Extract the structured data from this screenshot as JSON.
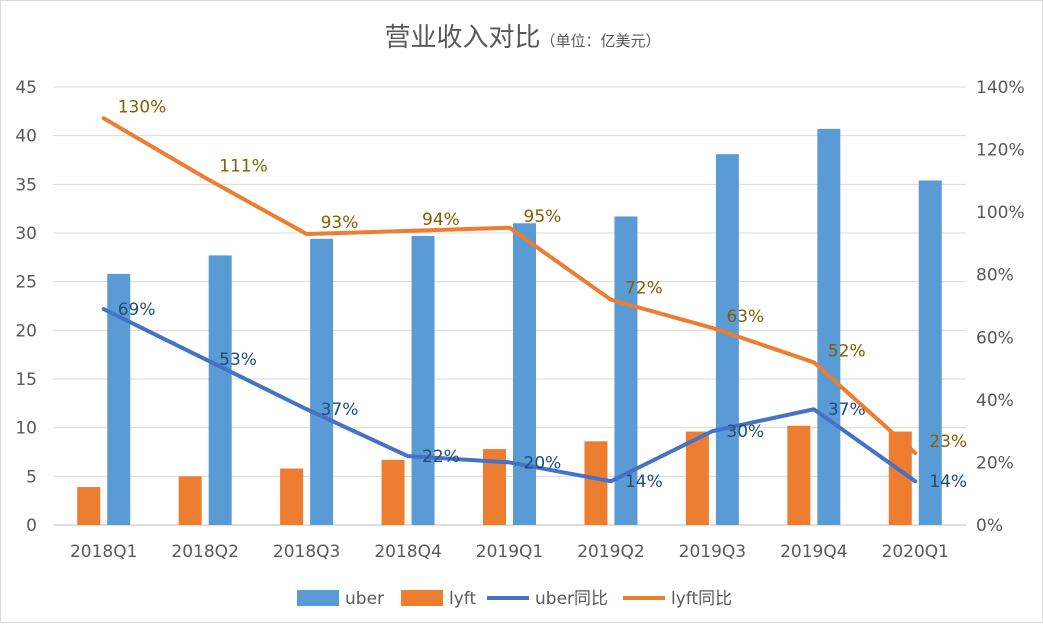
{
  "title": "营业收入对比",
  "unit": "（单位：亿美元）",
  "colors": {
    "uber": "#5B9BD5",
    "lyft": "#ED7D31",
    "uber_line": "#4472C4",
    "lyft_line": "#ED7D31",
    "uber_label": "#1F4E79",
    "lyft_label": "#7F6000"
  },
  "chart_data": {
    "type": "bar",
    "title": "营业收入对比",
    "subtitle": "（单位：亿美元）",
    "categories": [
      "2018Q1",
      "2018Q2",
      "2018Q3",
      "2018Q4",
      "2019Q1",
      "2019Q2",
      "2019Q3",
      "2019Q4",
      "2020Q1"
    ],
    "y_left": {
      "min": 0,
      "max": 45,
      "step": 5,
      "ticks": [
        "0",
        "5",
        "10",
        "15",
        "20",
        "25",
        "30",
        "35",
        "40",
        "45"
      ]
    },
    "y_right": {
      "min": 0,
      "max": 140,
      "step": 20,
      "ticks": [
        "0%",
        "20%",
        "40%",
        "60%",
        "80%",
        "100%",
        "120%",
        "140%"
      ]
    },
    "grid": true,
    "legend_position": "bottom",
    "series": [
      {
        "name": "uber",
        "type": "bar",
        "axis": "left",
        "values": [
          25.8,
          27.7,
          29.4,
          29.7,
          31.0,
          31.7,
          38.1,
          40.7,
          35.4
        ]
      },
      {
        "name": "lyft",
        "type": "bar",
        "axis": "left",
        "values": [
          3.9,
          5.0,
          5.8,
          6.7,
          7.8,
          8.6,
          9.6,
          10.2,
          9.6
        ]
      },
      {
        "name": "uber同比",
        "type": "line",
        "axis": "right",
        "values": [
          69,
          53,
          37,
          22,
          20,
          14,
          30,
          37,
          14
        ],
        "labels": [
          "69%",
          "53%",
          "37%",
          "22%",
          "20%",
          "14%",
          "30%",
          "37%",
          "14%"
        ]
      },
      {
        "name": "lyft同比",
        "type": "line",
        "axis": "right",
        "values": [
          130,
          111,
          93,
          94,
          95,
          72,
          63,
          52,
          23
        ],
        "labels": [
          "130%",
          "111%",
          "93%",
          "94%",
          "95%",
          "72%",
          "63%",
          "52%",
          "23%"
        ]
      }
    ]
  }
}
